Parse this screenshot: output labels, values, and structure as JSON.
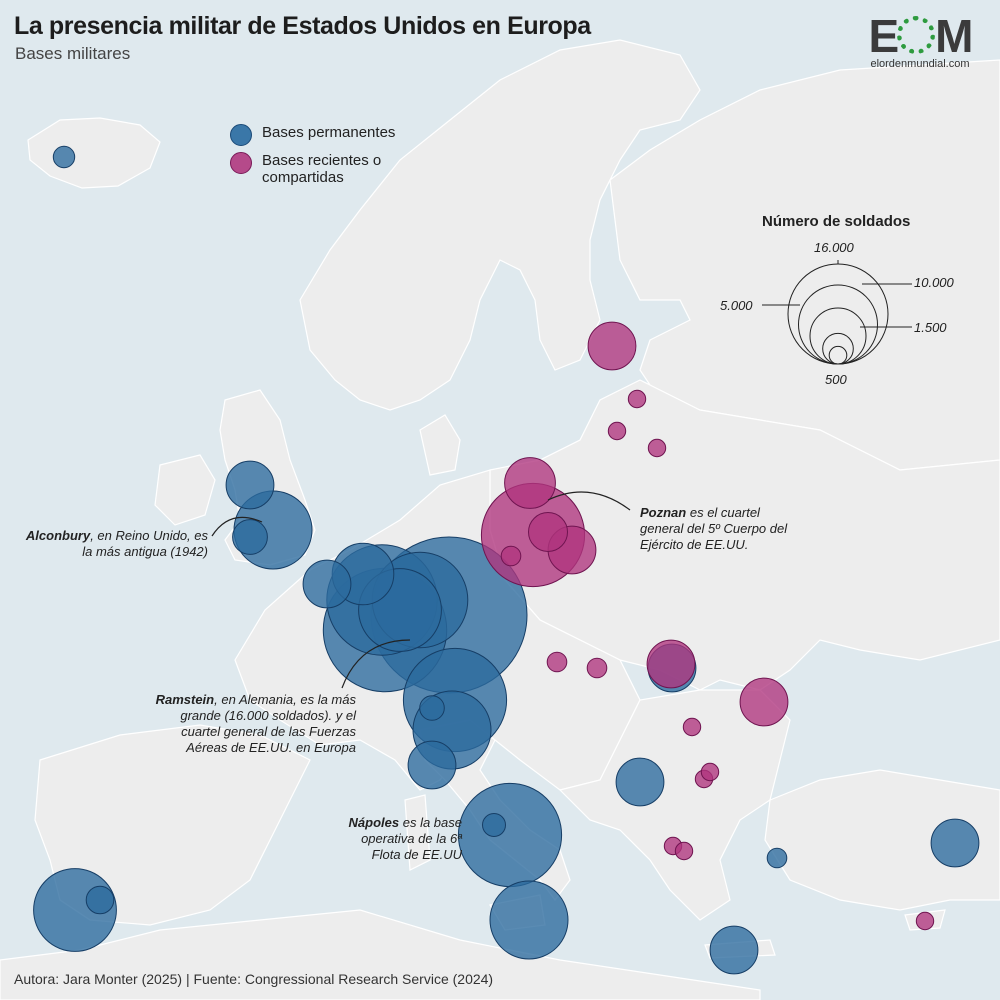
{
  "header": {
    "title": "La presencia militar de Estados Unidos en Europa",
    "subtitle": "Bases militares"
  },
  "logo": {
    "mark_left": "E",
    "mark_right": "M",
    "site": "elordenmundial.com"
  },
  "legend": {
    "permanent": {
      "label": "Bases permanentes",
      "color": "#2b6a9e"
    },
    "recent": {
      "label": "Bases recientes o compartidas",
      "color": "#b0347e"
    }
  },
  "size_legend": {
    "title": "Número de soldados",
    "values": [
      "16.000",
      "10.000",
      "5.000",
      "1.500",
      "500"
    ]
  },
  "annotations": {
    "alconbury": {
      "bold": "Alconbury",
      "text": ", en Reino Unido, es la más antigua (1942)"
    },
    "poznan": {
      "bold": "Poznan",
      "text": " es el cuartel general del 5º Cuerpo del Ejército de EE.UU."
    },
    "ramstein": {
      "bold": "Ramstein",
      "text": ", en Alemania, es la más grande (16.000 soldados). y el cuartel general de las Fuerzas Aéreas de EE.UU. en Europa"
    },
    "napoles": {
      "bold": "Nápoles",
      "text": " es la base operativa de la 6ª Flota de EE.UU"
    }
  },
  "bases": [
    {
      "type": "permanent",
      "soldiers": 300
    },
    {
      "type": "permanent",
      "soldiers": 1500
    },
    {
      "type": "permanent",
      "soldiers": 4000
    },
    {
      "type": "permanent",
      "soldiers": 800
    },
    {
      "type": "permanent",
      "soldiers": 1500
    },
    {
      "type": "permanent",
      "soldiers": 8000
    },
    {
      "type": "permanent",
      "soldiers": 4500
    },
    {
      "type": "permanent",
      "soldiers": 2500
    },
    {
      "type": "permanent",
      "soldiers": 16000
    },
    {
      "type": "permanent",
      "soldiers": 10000
    },
    {
      "type": "permanent",
      "soldiers": 6000
    },
    {
      "type": "permanent",
      "soldiers": 7000
    },
    {
      "type": "permanent",
      "soldiers": 4000
    },
    {
      "type": "permanent",
      "soldiers": 400
    },
    {
      "type": "permanent",
      "soldiers": 1500
    },
    {
      "type": "permanent",
      "soldiers": 7000
    },
    {
      "type": "permanent",
      "soldiers": 350
    },
    {
      "type": "permanent",
      "soldiers": 1500
    },
    {
      "type": "permanent",
      "soldiers": 4500
    },
    {
      "type": "permanent",
      "soldiers": 500
    },
    {
      "type": "permanent",
      "soldiers": 4000
    },
    {
      "type": "permanent",
      "soldiers": 1500
    },
    {
      "type": "permanent",
      "soldiers": 1500
    },
    {
      "type": "permanent",
      "soldiers": 250
    },
    {
      "type": "permanent",
      "soldiers": 1500
    },
    {
      "type": "recent",
      "soldiers": 1500
    },
    {
      "type": "recent",
      "soldiers": 200
    },
    {
      "type": "recent",
      "soldiers": 200
    },
    {
      "type": "recent",
      "soldiers": 200
    },
    {
      "type": "recent",
      "soldiers": 1700
    },
    {
      "type": "recent",
      "soldiers": 7000
    },
    {
      "type": "recent",
      "soldiers": 1000
    },
    {
      "type": "recent",
      "soldiers": 1500
    },
    {
      "type": "recent",
      "soldiers": 250
    },
    {
      "type": "recent",
      "soldiers": 250
    },
    {
      "type": "recent",
      "soldiers": 250
    },
    {
      "type": "recent",
      "soldiers": 1500
    },
    {
      "type": "recent",
      "soldiers": 1500
    },
    {
      "type": "recent",
      "soldiers": 200
    },
    {
      "type": "recent",
      "soldiers": 200
    },
    {
      "type": "recent",
      "soldiers": 200
    },
    {
      "type": "recent",
      "soldiers": 200
    },
    {
      "type": "recent",
      "soldiers": 200
    },
    {
      "type": "recent",
      "soldiers": 200
    }
  ],
  "source": "Autora: Jara Monter (2025) | Fuente: Congressional Research Service (2024)"
}
